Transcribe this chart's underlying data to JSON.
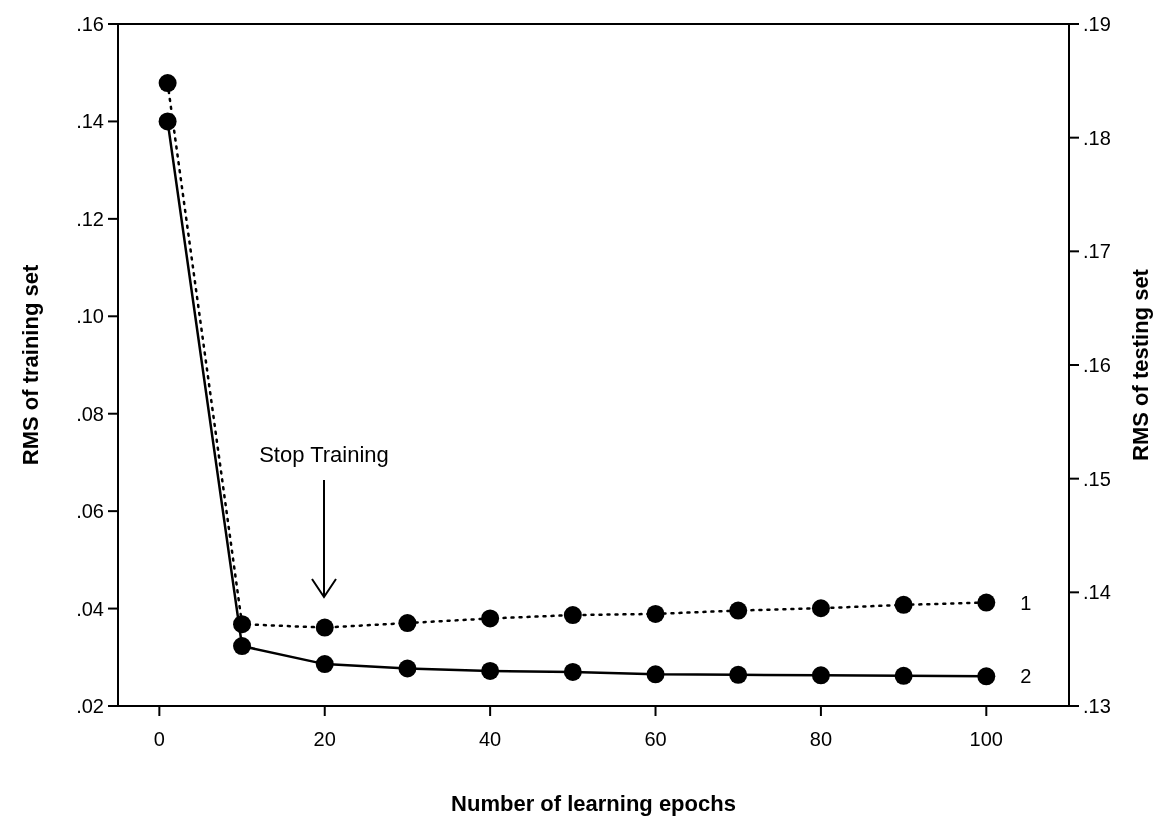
{
  "chart_data": {
    "type": "line",
    "xlabel": "Number of learning epochs",
    "ylabel": "RMS of training set",
    "y2label": "RMS of testing set",
    "xlim": [
      -5,
      110
    ],
    "xticks": [
      0,
      20,
      40,
      60,
      80,
      100
    ],
    "ylim": [
      0.02,
      0.16
    ],
    "yticks": [
      {
        "value": 0.02,
        "label": ".02"
      },
      {
        "value": 0.04,
        "label": ".04"
      },
      {
        "value": 0.06,
        "label": ".06"
      },
      {
        "value": 0.08,
        "label": ".08"
      },
      {
        "value": 0.1,
        "label": ".10"
      },
      {
        "value": 0.12,
        "label": ".12"
      },
      {
        "value": 0.14,
        "label": ".14"
      },
      {
        "value": 0.16,
        "label": ".16"
      }
    ],
    "y2lim": [
      0.13,
      0.19
    ],
    "y2ticks": [
      {
        "value": 0.13,
        "label": ".13"
      },
      {
        "value": 0.14,
        "label": ".14"
      },
      {
        "value": 0.15,
        "label": ".15"
      },
      {
        "value": 0.16,
        "label": ".16"
      },
      {
        "value": 0.17,
        "label": ".17"
      },
      {
        "value": 0.18,
        "label": ".18"
      },
      {
        "value": 0.19,
        "label": ".19"
      }
    ],
    "x": [
      1,
      10,
      20,
      30,
      40,
      50,
      60,
      70,
      80,
      90,
      100
    ],
    "series": [
      {
        "name": "1",
        "color": "#000000",
        "axis": "y2",
        "line_style": "dotted",
        "values": [
          0.1848,
          0.1372,
          0.1369,
          0.1373,
          0.1377,
          0.138,
          0.1381,
          0.1384,
          0.1386,
          0.1389,
          0.1391
        ]
      },
      {
        "name": "2",
        "color": "#000000",
        "axis": "y",
        "line_style": "solid",
        "values": [
          0.14,
          0.0323,
          0.0286,
          0.0277,
          0.0272,
          0.027,
          0.0265,
          0.0264,
          0.0263,
          0.0262,
          0.0261
        ]
      }
    ],
    "marker": "circle",
    "grid": false,
    "annotations": [
      "Stop Training"
    ]
  }
}
